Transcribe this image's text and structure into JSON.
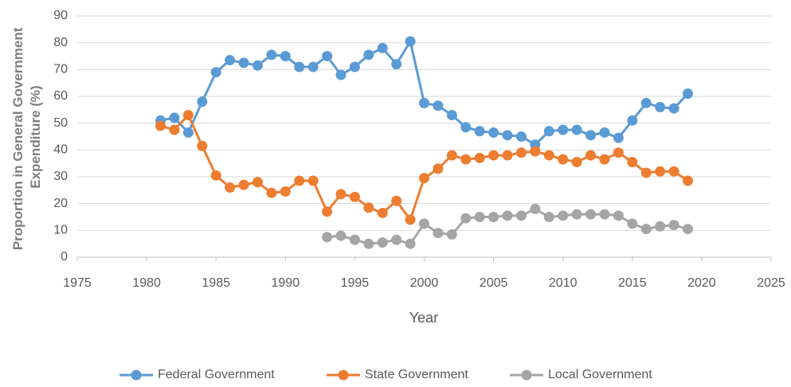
{
  "chart_data": {
    "type": "line",
    "x": [
      1981,
      1982,
      1983,
      1984,
      1985,
      1986,
      1987,
      1988,
      1989,
      1990,
      1991,
      1992,
      1993,
      1994,
      1995,
      1996,
      1997,
      1998,
      1999,
      2000,
      2001,
      2002,
      2003,
      2004,
      2005,
      2006,
      2007,
      2008,
      2009,
      2010,
      2011,
      2012,
      2013,
      2014,
      2015,
      2016,
      2017,
      2018,
      2019
    ],
    "series": [
      {
        "name": "Federal Government",
        "color": "#5b9bd5",
        "values": [
          51,
          52,
          46.5,
          58,
          69,
          73.5,
          72.5,
          71.5,
          75.5,
          75,
          71,
          71,
          75,
          68,
          71,
          75.5,
          78,
          72,
          80.5,
          57.5,
          56.5,
          53,
          48.5,
          47,
          46.5,
          45.5,
          45,
          42,
          47,
          47.5,
          47.5,
          45.5,
          46.5,
          44.5,
          51,
          57.5,
          56,
          55.5,
          61
        ]
      },
      {
        "name": "State Government",
        "color": "#ed7d31",
        "values": [
          49,
          47.5,
          53,
          41.5,
          30.5,
          26,
          27,
          28,
          24,
          24.5,
          28.5,
          28.5,
          17,
          23.5,
          22.5,
          18.5,
          16.5,
          21,
          14,
          29.5,
          33,
          38,
          36.5,
          37,
          38,
          38,
          39,
          39.5,
          38,
          36.5,
          35.5,
          38,
          36.5,
          39,
          35.5,
          31.5,
          32,
          32,
          28.5
        ]
      },
      {
        "name": "Local Government",
        "color": "#a5a5a5",
        "values": [
          null,
          null,
          null,
          null,
          null,
          null,
          null,
          null,
          null,
          null,
          null,
          null,
          7.5,
          8,
          6.5,
          5,
          5.5,
          6.5,
          5,
          12.5,
          9,
          8.5,
          14.5,
          15,
          15,
          15.5,
          15.5,
          18,
          15,
          15.5,
          16,
          16,
          16,
          15.5,
          12.5,
          10.5,
          11.5,
          12,
          10.5
        ]
      }
    ],
    "x_label": "Year",
    "y_label": [
      "Proportion in General Government",
      "Expenditure (%)"
    ],
    "xlim": [
      1975,
      2025
    ],
    "xticks": [
      1975,
      1980,
      1985,
      1990,
      1995,
      2000,
      2005,
      2010,
      2015,
      2020,
      2025
    ],
    "ylim": [
      0,
      90
    ],
    "yticks": [
      0,
      10,
      20,
      30,
      40,
      50,
      60,
      70,
      80,
      90
    ],
    "grid": true,
    "legend": "bottom"
  }
}
